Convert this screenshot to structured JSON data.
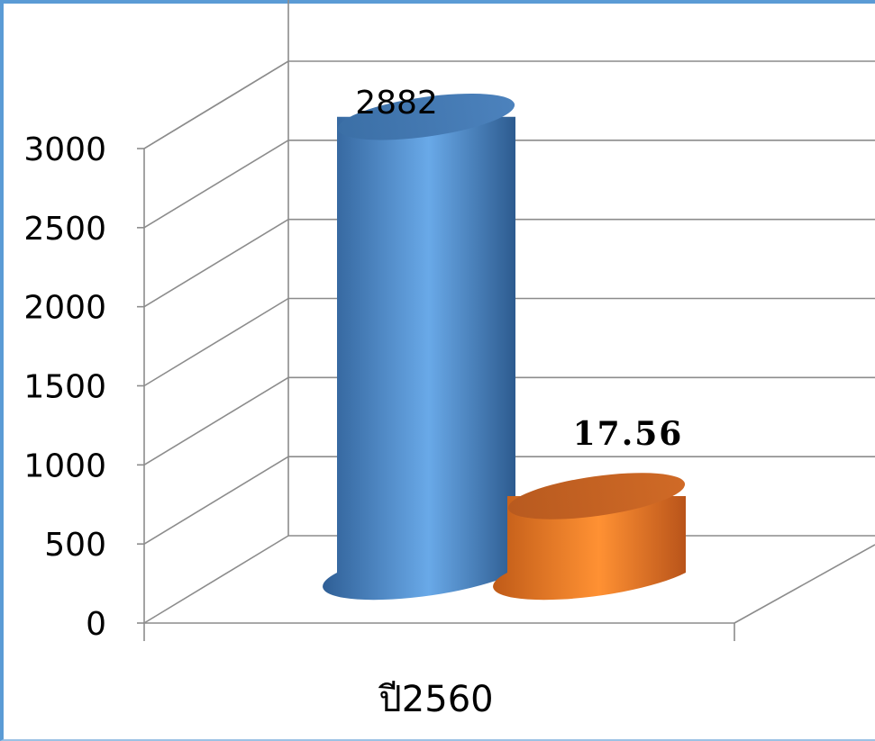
{
  "chart_data": {
    "type": "bar",
    "style": "3d-cylinder",
    "categories": [
      "ปี2560"
    ],
    "series": [
      {
        "values": [
          2882
        ],
        "color": "#4a86c8",
        "label": "2882"
      },
      {
        "values": [
          17.56
        ],
        "color": "#f07d2a",
        "label": "17.56"
      }
    ],
    "ylim": [
      0,
      3000
    ],
    "yticks": [
      0,
      500,
      1000,
      1500,
      2000,
      2500,
      3000
    ],
    "ytick_labels": [
      "0",
      "500",
      "1000",
      "1500",
      "2000",
      "2500",
      "3000"
    ],
    "grid": true,
    "legend": "none"
  }
}
